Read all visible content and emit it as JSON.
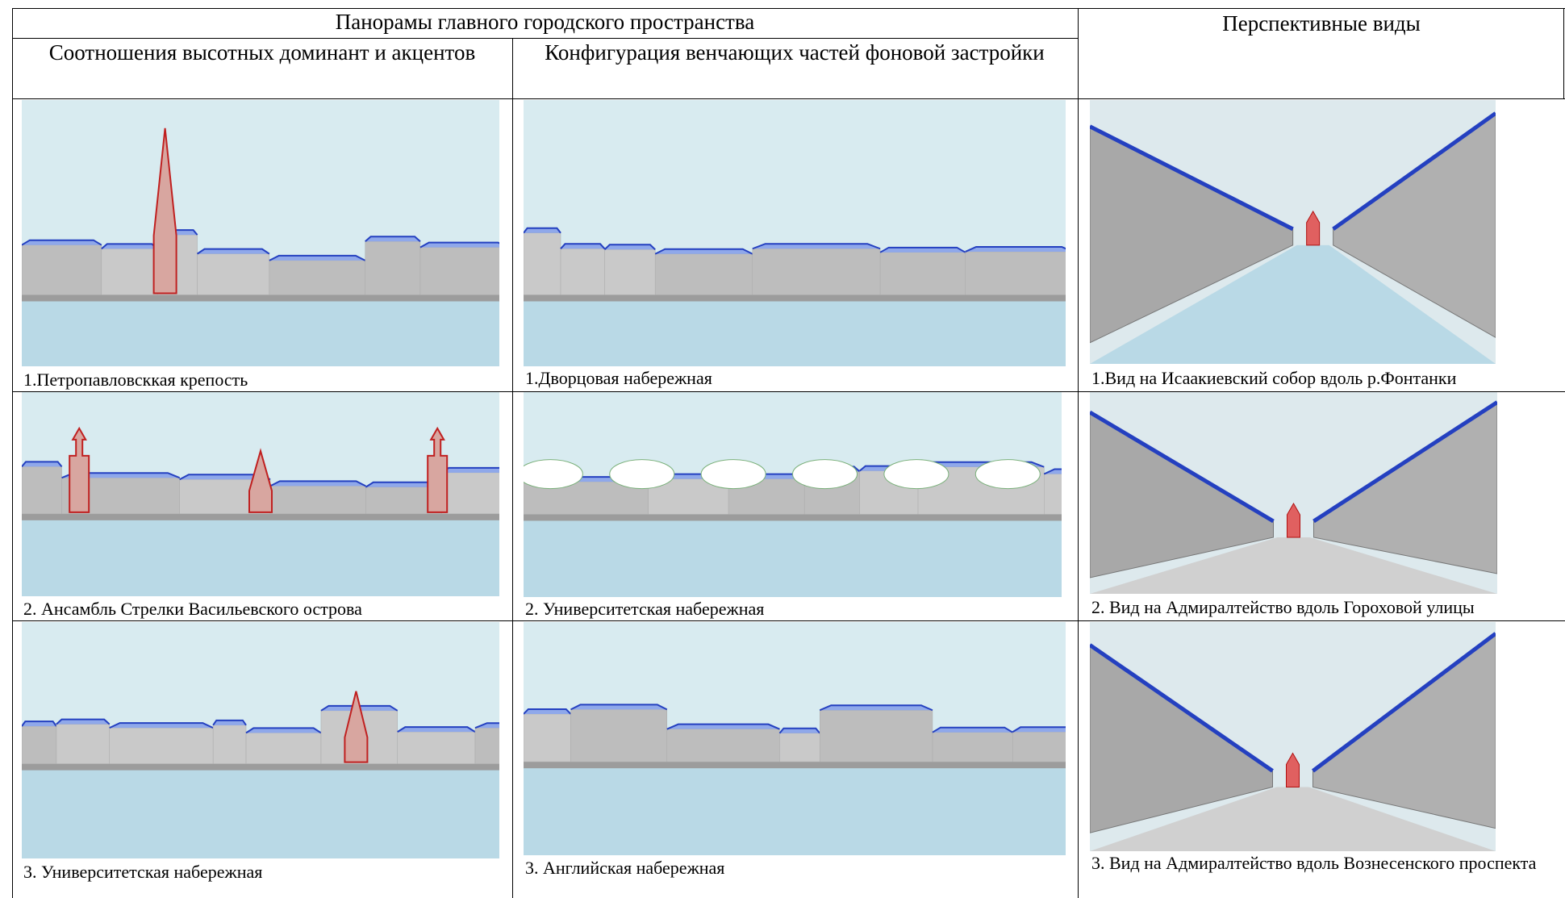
{
  "table": {
    "header": {
      "group": "Панорамы главного городского пространства",
      "perspective": "Перспективные виды",
      "columns": [
        "Соотношения высотных доминант и акцентов",
        "Конфигурация венчающих частей фоновой застройки"
      ]
    },
    "rows": [
      [
        "1.Петропавловсккая крепость",
        "1.Дворцовая набережная",
        "1.Вид на Исаакиевский собор вдоль р.Фонтанки"
      ],
      [
        "2. Ансамбль Стрелки Васильевского острова",
        "2. Университетская набережная",
        "2. Вид на Адмиралтейство вдоль Гороховой улицы"
      ],
      [
        "3. Университетская набережная",
        "3. Английская набережная",
        "3. Вид на Адмиралтейство вдоль Вознесенского проспекта"
      ]
    ]
  }
}
